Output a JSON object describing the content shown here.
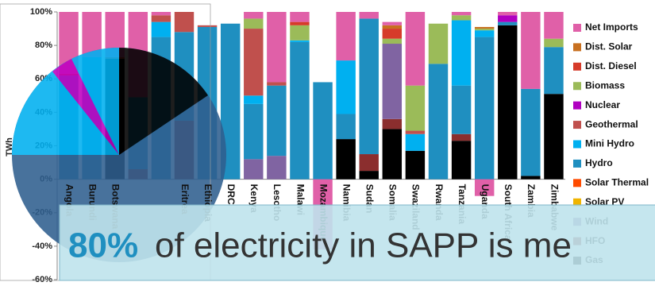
{
  "chart_data": {
    "type": "stacked_bar",
    "y_label": "TWh",
    "categories": [
      "Angola",
      "Burundi",
      "Botswana",
      null,
      null,
      "Eritrea",
      "Ethiopia",
      "DRC",
      "Kenya",
      "Lesotho",
      "Malawi",
      "Mozambique",
      "Namibia",
      "Sudan",
      "Somalia",
      "Swaziland",
      "Rwanda",
      "Tanzania",
      "Uganda",
      "South Africa",
      "Zambia",
      "Zimbabwe"
    ],
    "ylim": [
      -60,
      100
    ],
    "yticks": [
      {
        "value": -60,
        "label": "-60%"
      },
      {
        "value": -40,
        "label": "-40%"
      },
      {
        "value": -20,
        "label": "-20%"
      },
      {
        "value": 0,
        "label": "0%"
      },
      {
        "value": 20,
        "label": "20%"
      },
      {
        "value": 40,
        "label": "40%"
      },
      {
        "value": 60,
        "label": "60%"
      },
      {
        "value": 80,
        "label": "80%"
      },
      {
        "value": 100,
        "label": "100%"
      }
    ],
    "series": [
      {
        "name": "Gas",
        "color": "#000000",
        "values": [
          0,
          0,
          72,
          0,
          0,
          0,
          0,
          0,
          0,
          0,
          0,
          0,
          24,
          5,
          30,
          17,
          0,
          23,
          0,
          92,
          2,
          51
        ]
      },
      {
        "name": "HFO",
        "color": "#8b2e2e",
        "values": [
          0,
          0,
          0,
          6,
          0,
          35,
          0,
          0,
          0,
          0,
          0,
          0,
          0,
          10,
          6,
          0,
          0,
          4,
          0,
          0,
          0,
          0
        ]
      },
      {
        "name": "Wind",
        "color": "#8064a2",
        "values": [
          0,
          0,
          0,
          0,
          0,
          0,
          0,
          0,
          12,
          14,
          0,
          0,
          0,
          0,
          45,
          0,
          0,
          0,
          0,
          0,
          0,
          0
        ]
      },
      {
        "name": "Solar PV",
        "color": "#f0b400",
        "values": [
          0,
          0,
          0,
          0,
          0,
          0,
          0,
          0,
          0,
          0,
          0,
          0,
          0,
          0,
          0,
          0,
          0,
          0,
          0,
          0,
          0,
          0
        ]
      },
      {
        "name": "Solar Thermal",
        "color": "#ff4b00",
        "values": [
          0,
          0,
          0,
          0,
          0,
          0,
          0,
          0,
          0,
          0,
          0,
          0,
          0,
          0,
          0,
          0,
          0,
          0,
          0,
          0,
          0,
          0
        ]
      },
      {
        "name": "Hydro",
        "color": "#1f8fc0",
        "values": [
          62,
          73,
          0,
          43,
          85,
          53,
          91,
          93,
          33,
          42,
          82,
          58,
          15,
          81,
          0,
          0,
          69,
          29,
          85,
          2,
          52,
          28
        ]
      },
      {
        "name": "Mini Hydro",
        "color": "#00b0f0",
        "values": [
          0,
          0,
          0,
          0,
          9,
          0,
          0,
          0,
          5,
          0,
          1,
          0,
          32,
          0,
          0,
          10,
          0,
          39,
          4,
          0,
          0,
          0
        ]
      },
      {
        "name": "Geothermal",
        "color": "#c0504d",
        "values": [
          0,
          0,
          0,
          0,
          4,
          12,
          1,
          0,
          40,
          2,
          0,
          0,
          0,
          0,
          0,
          2,
          0,
          0,
          0,
          0,
          0,
          0
        ]
      },
      {
        "name": "Nuclear",
        "color": "#b000c0",
        "values": [
          0,
          0,
          0,
          0,
          0,
          0,
          0,
          0,
          0,
          0,
          0,
          0,
          0,
          0,
          0,
          0,
          0,
          0,
          0,
          4,
          0,
          0
        ]
      },
      {
        "name": "Biomass",
        "color": "#9bbb59",
        "values": [
          0,
          0,
          0,
          0,
          0,
          0,
          0,
          0,
          6,
          0,
          9,
          0,
          0,
          0,
          3,
          27,
          24,
          3,
          1,
          0,
          0,
          5
        ]
      },
      {
        "name": "Dist. Diesel",
        "color": "#d63b2a",
        "values": [
          1,
          0,
          1,
          0,
          0,
          0,
          0,
          0,
          0,
          0,
          2,
          0,
          0,
          0,
          6,
          0,
          0,
          0,
          0,
          0,
          0,
          0
        ]
      },
      {
        "name": "Dist. Solar",
        "color": "#c87020",
        "values": [
          0,
          0,
          0,
          0,
          0,
          0,
          0,
          0,
          0,
          0,
          0,
          0,
          0,
          0,
          2,
          0,
          0,
          0,
          1,
          0,
          0,
          0
        ]
      },
      {
        "name": "Net Imports",
        "color": "#e060a8",
        "values": [
          37,
          27,
          27,
          51,
          2,
          0,
          0,
          0,
          4,
          42,
          6,
          -42,
          29,
          4,
          2,
          44,
          0,
          2,
          -10,
          2,
          46,
          16
        ]
      }
    ],
    "legend": "right"
  },
  "overlay": {
    "highlight": "80%",
    "text": "of electricity in SAPP is me"
  }
}
